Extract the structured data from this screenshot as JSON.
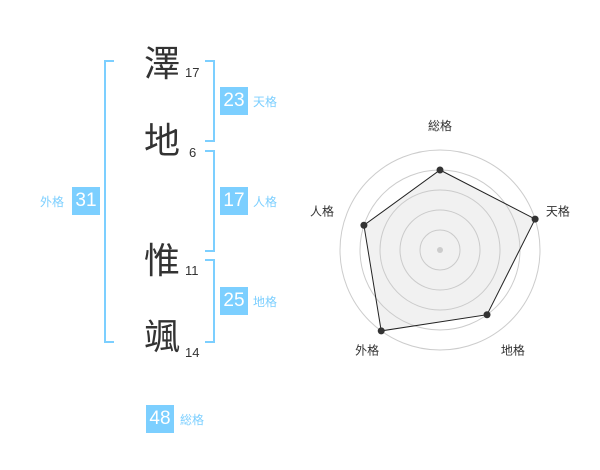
{
  "name_chars": [
    {
      "char": "澤",
      "strokes": "17"
    },
    {
      "char": "地",
      "strokes": "6"
    },
    {
      "char": "惟",
      "strokes": "11"
    },
    {
      "char": "颯",
      "strokes": "14"
    }
  ],
  "fortunes": {
    "tenkaku": {
      "value": "23",
      "label": "天格"
    },
    "jinkaku": {
      "value": "17",
      "label": "人格"
    },
    "chikaku": {
      "value": "25",
      "label": "地格"
    },
    "gaikaku": {
      "value": "31",
      "label": "外格"
    },
    "soukaku": {
      "value": "48",
      "label": "総格"
    }
  },
  "accent_color": "#7ccfff",
  "chart_data": {
    "type": "radar",
    "categories": [
      "総格",
      "天格",
      "地格",
      "外格",
      "人格"
    ],
    "values": [
      4,
      5,
      4,
      5,
      4
    ],
    "rlim": [
      0,
      5
    ],
    "grid": true
  }
}
